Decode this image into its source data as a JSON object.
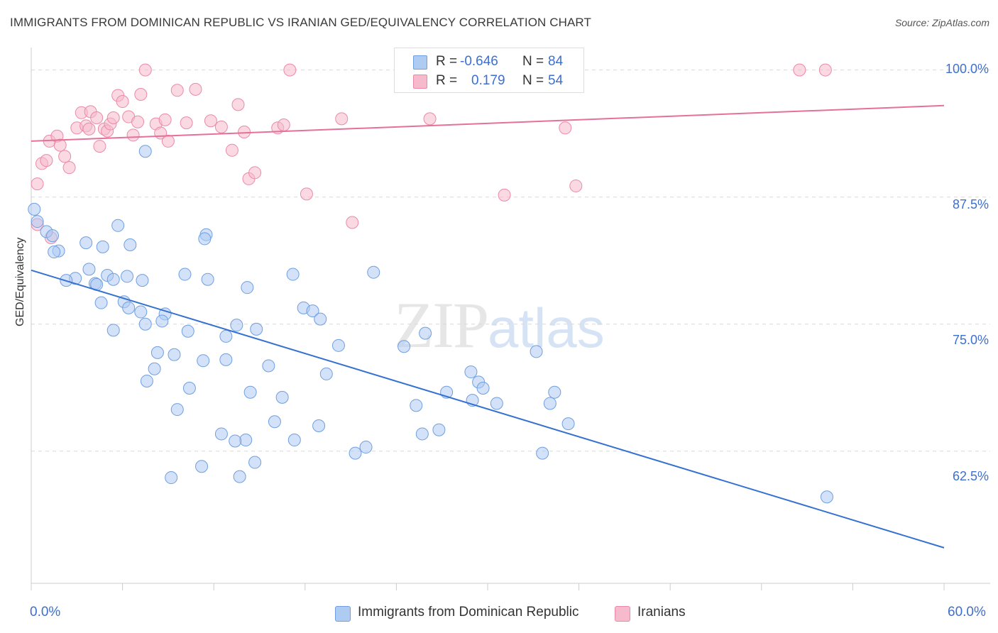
{
  "header": {
    "title": "IMMIGRANTS FROM DOMINICAN REPUBLIC VS IRANIAN GED/EQUIVALENCY CORRELATION CHART",
    "source": "Source: ZipAtlas.com"
  },
  "watermark": {
    "zip": "ZIP",
    "atlas": "atlas"
  },
  "legend": {
    "rows": [
      {
        "r_label": "R =",
        "r_value": "-0.646",
        "n_label": "N =",
        "n_value": "84",
        "color": "#aecbf2"
      },
      {
        "r_label": "R =",
        "r_value": "0.179",
        "n_label": "N =",
        "n_value": "54",
        "color": "#f7b9cc"
      }
    ]
  },
  "bottom_legend": {
    "blue": "Immigrants from Dominican Republic",
    "pink": "Iranians"
  },
  "colors": {
    "blue_fill": "#aecbf2",
    "blue_stroke": "#6f9fe0",
    "blue_line": "#3571d1",
    "pink_fill": "#f7b9cc",
    "pink_stroke": "#e98aa8",
    "pink_line": "#e5709a",
    "grid": "#d9d9d9",
    "tick_text": "#3d6fd0"
  },
  "chart_data": {
    "type": "scatter",
    "title": "IMMIGRANTS FROM DOMINICAN REPUBLIC VS IRANIAN GED/EQUIVALENCY CORRELATION CHART",
    "xlabel": "",
    "ylabel": "GED/Equivalency",
    "xlim": [
      0,
      60
    ],
    "ylim": [
      49.5,
      102
    ],
    "x_tick_labels": [
      "0.0%",
      "60.0%"
    ],
    "y_ticks": [
      62.5,
      75.0,
      87.5,
      100.0
    ],
    "y_tick_labels": [
      "62.5%",
      "75.0%",
      "87.5%",
      "100.0%"
    ],
    "grid": "horizontal dashed",
    "legend_position": "top-center",
    "series": [
      {
        "name": "Immigrants from Dominican Republic",
        "R": -0.646,
        "N": 84,
        "trend": {
          "x": [
            0,
            60
          ],
          "y": [
            80.3,
            53.0
          ]
        },
        "points": [
          [
            0.2,
            86.3
          ],
          [
            0.4,
            85.1
          ],
          [
            1.0,
            84.1
          ],
          [
            1.4,
            83.7
          ],
          [
            1.8,
            82.2
          ],
          [
            1.5,
            82.1
          ],
          [
            3.6,
            83.0
          ],
          [
            4.7,
            82.6
          ],
          [
            5.7,
            84.7
          ],
          [
            6.5,
            82.8
          ],
          [
            11.5,
            83.8
          ],
          [
            11.4,
            83.4
          ],
          [
            3.8,
            80.4
          ],
          [
            2.9,
            79.5
          ],
          [
            2.3,
            79.3
          ],
          [
            4.2,
            79.0
          ],
          [
            4.3,
            78.9
          ],
          [
            5.0,
            79.8
          ],
          [
            5.4,
            79.4
          ],
          [
            6.3,
            79.7
          ],
          [
            7.3,
            79.3
          ],
          [
            10.1,
            79.9
          ],
          [
            11.6,
            79.4
          ],
          [
            14.2,
            78.6
          ],
          [
            17.2,
            79.9
          ],
          [
            22.5,
            80.1
          ],
          [
            4.6,
            77.1
          ],
          [
            6.1,
            77.2
          ],
          [
            6.4,
            76.6
          ],
          [
            7.2,
            76.2
          ],
          [
            8.8,
            76.0
          ],
          [
            7.5,
            75.0
          ],
          [
            8.6,
            75.3
          ],
          [
            5.4,
            74.4
          ],
          [
            10.3,
            74.3
          ],
          [
            13.5,
            74.9
          ],
          [
            14.8,
            74.5
          ],
          [
            12.8,
            73.8
          ],
          [
            17.9,
            76.6
          ],
          [
            18.5,
            76.3
          ],
          [
            19.0,
            75.5
          ],
          [
            20.2,
            72.9
          ],
          [
            24.5,
            72.8
          ],
          [
            25.9,
            74.1
          ],
          [
            8.3,
            72.2
          ],
          [
            9.4,
            72.0
          ],
          [
            11.3,
            71.4
          ],
          [
            12.8,
            71.5
          ],
          [
            8.1,
            70.6
          ],
          [
            7.6,
            69.4
          ],
          [
            19.4,
            70.1
          ],
          [
            28.9,
            70.3
          ],
          [
            29.4,
            69.3
          ],
          [
            29.7,
            68.7
          ],
          [
            33.2,
            72.3
          ],
          [
            10.4,
            68.7
          ],
          [
            14.4,
            68.3
          ],
          [
            16.5,
            67.8
          ],
          [
            25.3,
            67.0
          ],
          [
            27.3,
            68.3
          ],
          [
            29.0,
            67.5
          ],
          [
            30.6,
            67.2
          ],
          [
            34.1,
            67.2
          ],
          [
            34.4,
            68.3
          ],
          [
            9.6,
            66.6
          ],
          [
            16.0,
            65.4
          ],
          [
            18.9,
            65.0
          ],
          [
            25.7,
            64.2
          ],
          [
            35.3,
            65.2
          ],
          [
            12.5,
            64.2
          ],
          [
            14.1,
            63.6
          ],
          [
            13.4,
            63.5
          ],
          [
            17.3,
            63.6
          ],
          [
            21.3,
            62.3
          ],
          [
            33.6,
            62.3
          ],
          [
            11.2,
            61.0
          ],
          [
            14.7,
            61.4
          ],
          [
            13.7,
            60.0
          ],
          [
            9.2,
            59.9
          ],
          [
            52.3,
            58.0
          ],
          [
            7.5,
            92.0
          ],
          [
            15.6,
            70.9
          ],
          [
            22.0,
            62.9
          ],
          [
            26.8,
            64.6
          ]
        ]
      },
      {
        "name": "Iranians",
        "R": 0.179,
        "N": 54,
        "trend": {
          "x": [
            0,
            60
          ],
          "y": [
            93.0,
            96.5
          ]
        },
        "points": [
          [
            0.4,
            84.8
          ],
          [
            0.4,
            88.8
          ],
          [
            0.7,
            90.8
          ],
          [
            1.0,
            91.1
          ],
          [
            1.2,
            93.0
          ],
          [
            1.7,
            93.5
          ],
          [
            1.9,
            92.6
          ],
          [
            2.2,
            91.5
          ],
          [
            2.5,
            90.4
          ],
          [
            3.0,
            94.3
          ],
          [
            3.3,
            95.8
          ],
          [
            3.6,
            94.5
          ],
          [
            3.8,
            94.2
          ],
          [
            3.9,
            95.9
          ],
          [
            4.3,
            95.3
          ],
          [
            4.5,
            92.5
          ],
          [
            4.8,
            94.2
          ],
          [
            5.0,
            94.0
          ],
          [
            5.2,
            94.7
          ],
          [
            5.4,
            95.3
          ],
          [
            5.7,
            97.5
          ],
          [
            6.0,
            96.9
          ],
          [
            6.4,
            95.4
          ],
          [
            6.7,
            93.6
          ],
          [
            7.0,
            94.9
          ],
          [
            7.2,
            97.6
          ],
          [
            7.5,
            100.0
          ],
          [
            8.2,
            94.7
          ],
          [
            8.5,
            93.8
          ],
          [
            8.8,
            95.1
          ],
          [
            9.0,
            93.0
          ],
          [
            9.6,
            98.0
          ],
          [
            10.2,
            94.8
          ],
          [
            10.8,
            98.1
          ],
          [
            11.8,
            95.0
          ],
          [
            12.5,
            94.4
          ],
          [
            13.2,
            92.1
          ],
          [
            13.6,
            96.6
          ],
          [
            14.0,
            93.9
          ],
          [
            14.3,
            89.3
          ],
          [
            14.7,
            89.9
          ],
          [
            16.2,
            94.3
          ],
          [
            16.6,
            94.6
          ],
          [
            17.0,
            100.0
          ],
          [
            18.1,
            87.8
          ],
          [
            20.4,
            95.2
          ],
          [
            21.1,
            85.0
          ],
          [
            26.2,
            95.2
          ],
          [
            31.1,
            87.7
          ],
          [
            35.1,
            94.3
          ],
          [
            35.8,
            88.6
          ],
          [
            50.5,
            100.0
          ],
          [
            52.2,
            100.0
          ],
          [
            1.3,
            83.5
          ]
        ]
      }
    ]
  }
}
